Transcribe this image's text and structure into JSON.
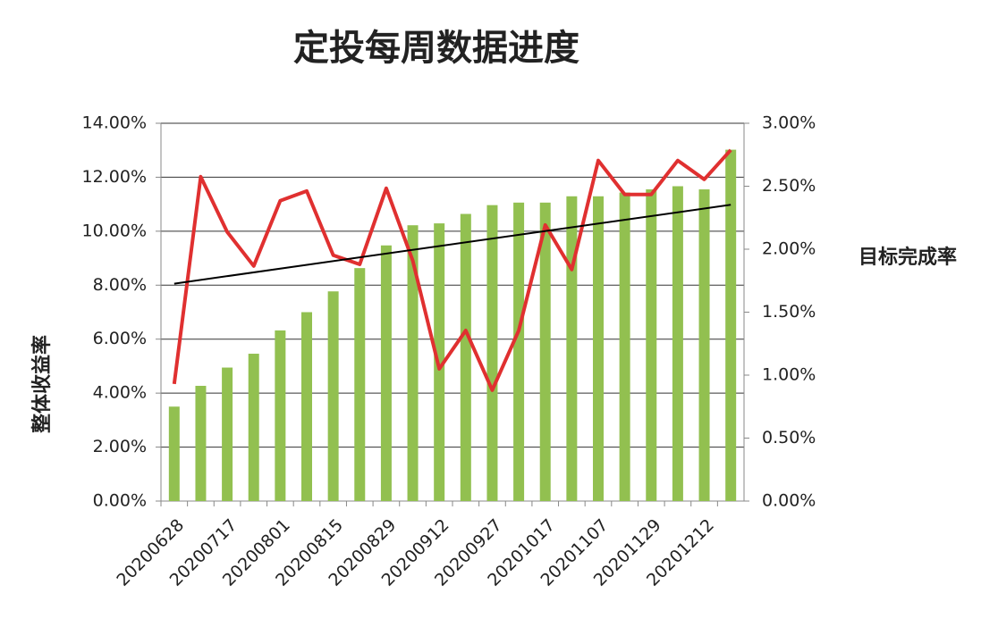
{
  "chart_data": {
    "type": "bar-line",
    "title": "定投每周数据进度",
    "y_label": "整体收益率",
    "y2_label": "目标完成率",
    "categories": [
      "20200628",
      null,
      "20200717",
      null,
      "20200801",
      null,
      "20200815",
      null,
      "20200829",
      null,
      "20200912",
      null,
      "20200927",
      null,
      "20201017",
      null,
      "20201107",
      null,
      "20201129",
      null,
      "20201212",
      null
    ],
    "series": [
      {
        "type": "bar",
        "axis": "y2",
        "color": "#92c050",
        "values": [
          0.75,
          0.915,
          1.06,
          1.17,
          1.355,
          1.5,
          1.665,
          1.85,
          2.03,
          2.19,
          2.205,
          2.28,
          2.35,
          2.37,
          2.37,
          2.42,
          2.42,
          2.45,
          2.475,
          2.5,
          2.475,
          2.79
        ]
      },
      {
        "type": "line",
        "axis": "y",
        "color": "#e03030",
        "trendline": true,
        "trend_color": "#000000",
        "values": [
          4.34,
          12.02,
          9.97,
          8.71,
          11.13,
          11.49,
          9.11,
          8.77,
          11.59,
          8.91,
          4.9,
          6.32,
          4.11,
          6.32,
          10.23,
          8.58,
          12.62,
          11.36,
          11.36,
          12.62,
          11.92,
          13.01
        ]
      }
    ],
    "ylim": [
      0,
      14
    ],
    "yticks": [
      {
        "value": 0,
        "label": "0.00%"
      },
      {
        "value": 2,
        "label": "2.00%"
      },
      {
        "value": 4,
        "label": "4.00%"
      },
      {
        "value": 6,
        "label": "6.00%"
      },
      {
        "value": 8,
        "label": "8.00%"
      },
      {
        "value": 10,
        "label": "10.00%"
      },
      {
        "value": 12,
        "label": "12.00%"
      },
      {
        "value": 14,
        "label": "14.00%"
      }
    ],
    "y2lim": [
      0,
      3
    ],
    "y2ticks": [
      {
        "value": 0,
        "label": "0.00%"
      },
      {
        "value": 0.5,
        "label": "0.50%"
      },
      {
        "value": 1,
        "label": "1.00%"
      },
      {
        "value": 1.5,
        "label": "1.50%"
      },
      {
        "value": 2,
        "label": "2.00%"
      },
      {
        "value": 2.5,
        "label": "2.50%"
      },
      {
        "value": 3,
        "label": "3.00%"
      }
    ],
    "grid": true
  }
}
